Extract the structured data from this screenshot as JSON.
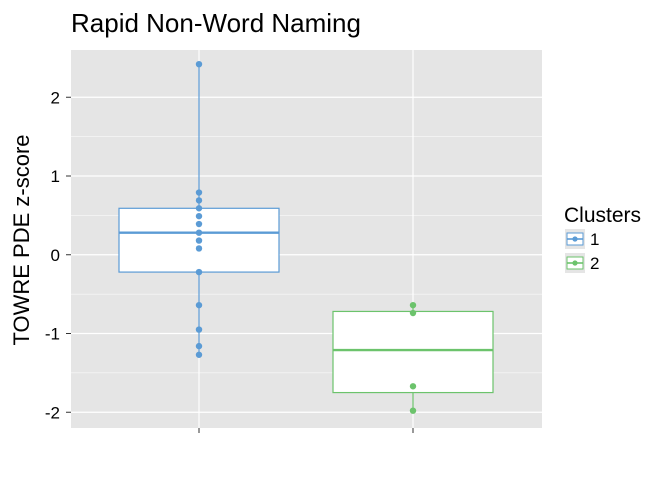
{
  "chart_data": {
    "type": "boxplot",
    "title": "Rapid Non-Word Naming",
    "xlabel": "",
    "ylabel": "TOWRE PDE z-score",
    "ylim": [
      -2.2,
      2.6
    ],
    "yticks": [
      -2,
      -1,
      0,
      1,
      2
    ],
    "grid": true,
    "legend": {
      "title": "Clusters",
      "position": "right",
      "entries": [
        "1",
        "2"
      ]
    },
    "colors": {
      "1": "#5b9bd5",
      "2": "#6cc36c",
      "panel": "#e5e5e5",
      "grid": "#ffffff"
    },
    "groups": [
      {
        "name": "1",
        "q1": -0.22,
        "median": 0.28,
        "q3": 0.59,
        "whisker_low": -1.27,
        "whisker_high": 2.42,
        "points": [
          2.42,
          0.79,
          0.69,
          0.59,
          0.49,
          0.39,
          0.28,
          0.18,
          0.08,
          -0.22,
          -0.64,
          -0.95,
          -1.16,
          -1.27
        ]
      },
      {
        "name": "2",
        "q1": -1.75,
        "median": -1.21,
        "q3": -0.72,
        "whisker_low": -1.98,
        "whisker_high": -0.64,
        "points": [
          -0.64,
          -0.74,
          -1.67,
          -1.98
        ]
      }
    ]
  }
}
